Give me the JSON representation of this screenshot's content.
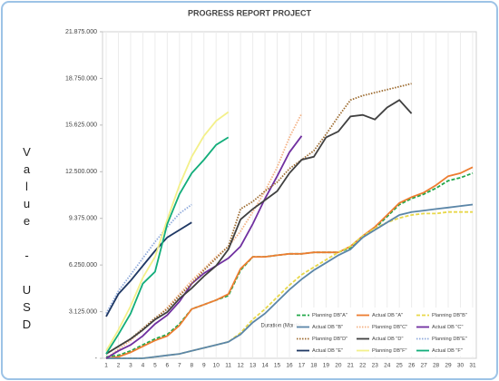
{
  "chart_data": {
    "type": "line",
    "title": "PROGRESS REPORT PROJECT",
    "ylabel": "Value - USD",
    "xlabel": "Duration (Month)",
    "x": [
      1,
      2,
      3,
      4,
      5,
      6,
      7,
      8,
      9,
      10,
      11,
      12,
      13,
      14,
      15,
      16,
      17,
      18,
      19,
      20,
      21,
      22,
      23,
      24,
      25,
      26,
      27,
      28,
      29,
      30,
      31
    ],
    "xlim": [
      0.7,
      31.3
    ],
    "xticks": [
      1,
      2,
      3,
      4,
      5,
      6,
      7,
      8,
      9,
      10,
      11,
      12,
      13,
      14,
      15,
      16,
      17,
      18,
      19,
      20,
      21,
      22,
      23,
      24,
      25,
      26,
      27,
      28,
      29,
      30,
      31
    ],
    "ylim": [
      0,
      21875000
    ],
    "yticks": [
      {
        "value": 0,
        "label": "-"
      },
      {
        "value": 3125000,
        "label": "3.125.000"
      },
      {
        "value": 6250000,
        "label": "6.250.000"
      },
      {
        "value": 9375000,
        "label": "9.375.000"
      },
      {
        "value": 12500000,
        "label": "12.500.000"
      },
      {
        "value": 15625000,
        "label": "15.625.000"
      },
      {
        "value": 18750000,
        "label": "18.750.000"
      },
      {
        "value": 21875000,
        "label": "21.875.000"
      }
    ],
    "grid": "x",
    "legend": "lower right",
    "series": [
      {
        "name": "Planning DB\"A\"",
        "color": "#22a84a",
        "style": "dashed",
        "values": [
          100000,
          200000,
          500000,
          900000,
          1300000,
          1600000,
          2300000,
          3300000,
          3600000,
          3900000,
          4200000,
          5900000,
          6800000,
          6800000,
          6900000,
          7000000,
          7000000,
          7100000,
          7100000,
          7100000,
          7400000,
          8100000,
          8700000,
          9500000,
          10300000,
          10700000,
          11000000,
          11400000,
          11900000,
          12100000,
          12400000
        ]
      },
      {
        "name": "Actual DB \"A\"",
        "color": "#ed7d31",
        "style": "solid",
        "values": [
          0,
          100000,
          400000,
          800000,
          1200000,
          1500000,
          2200000,
          3300000,
          3600000,
          3900000,
          4300000,
          6000000,
          6800000,
          6800000,
          6900000,
          7000000,
          7000000,
          7100000,
          7100000,
          7100000,
          7500000,
          8200000,
          8800000,
          9600000,
          10400000,
          10800000,
          11100000,
          11600000,
          12200000,
          12400000,
          12800000
        ]
      },
      {
        "name": "Planning  DB\"B\"",
        "color": "#e8d84a",
        "style": "dashed",
        "values": [
          0,
          0,
          0,
          0,
          100000,
          200000,
          300000,
          500000,
          700000,
          900000,
          1100000,
          1700000,
          2600000,
          3300000,
          4100000,
          4900000,
          5600000,
          6100000,
          6600000,
          7100000,
          7500000,
          8200000,
          8700000,
          9100000,
          9400000,
          9600000,
          9700000,
          9700000,
          9800000,
          9800000,
          9800000
        ]
      },
      {
        "name": "Actual  DB \"B\"",
        "color": "#5b86a8",
        "style": "solid",
        "values": [
          0,
          0,
          0,
          0,
          100000,
          200000,
          300000,
          500000,
          700000,
          900000,
          1100000,
          1600000,
          2400000,
          3000000,
          3800000,
          4600000,
          5300000,
          5900000,
          6400000,
          6900000,
          7300000,
          8100000,
          8600000,
          9100000,
          9600000,
          9800000,
          9900000,
          10000000,
          10100000,
          10200000,
          10300000
        ]
      },
      {
        "name": "Planning  DB\"C\"",
        "color": "#f4b183",
        "style": "dotted",
        "values": [
          0,
          600000,
          1200000,
          1900000,
          2600000,
          3400000,
          4300000,
          5200000,
          6000000,
          6800000,
          7500000,
          8500000,
          9800000,
          11200000,
          12800000,
          14800000,
          16400000,
          null,
          null,
          null,
          null,
          null,
          null,
          null,
          null,
          null,
          null,
          null,
          null,
          null,
          null
        ]
      },
      {
        "name": "Actual DB \"C\"",
        "color": "#7030a0",
        "style": "solid",
        "values": [
          0,
          500000,
          900000,
          1500000,
          2300000,
          2900000,
          3800000,
          5000000,
          5700000,
          6200000,
          6700000,
          7500000,
          9000000,
          10700000,
          12200000,
          13800000,
          14900000,
          null,
          null,
          null,
          null,
          null,
          null,
          null,
          null,
          null,
          null,
          null,
          null,
          null,
          null
        ]
      },
      {
        "name": "Planning DB\"D\"",
        "color": "#9c6a2e",
        "style": "dotted",
        "values": [
          300000,
          800000,
          1300000,
          2000000,
          2700000,
          3300000,
          4200000,
          5000000,
          5900000,
          6700000,
          7500000,
          10000000,
          10500000,
          11200000,
          11800000,
          12700000,
          13300000,
          13900000,
          15000000,
          16200000,
          17300000,
          17600000,
          17800000,
          18000000,
          18200000,
          18400000,
          null,
          null,
          null,
          null,
          null
        ]
      },
      {
        "name": "Actual  DB \"D\"",
        "color": "#404040",
        "style": "solid",
        "values": [
          300000,
          800000,
          1300000,
          1900000,
          2600000,
          3100000,
          4000000,
          4700000,
          5500000,
          6200000,
          7300000,
          9300000,
          10000000,
          10600000,
          11200000,
          12400000,
          13300000,
          13500000,
          14800000,
          15200000,
          16200000,
          16300000,
          16000000,
          16800000,
          17300000,
          16400000,
          null,
          null,
          null,
          null,
          null
        ]
      },
      {
        "name": "Planning DB\"E\"",
        "color": "#8faadc",
        "style": "dotted",
        "values": [
          3000000,
          4500000,
          5600000,
          6700000,
          7800000,
          8800000,
          9700000,
          10300000,
          null,
          null,
          null,
          null,
          null,
          null,
          null,
          null,
          null,
          null,
          null,
          null,
          null,
          null,
          null,
          null,
          null,
          null,
          null,
          null,
          null,
          null,
          null
        ]
      },
      {
        "name": "Actual DB \"E\"",
        "color": "#1f3864",
        "style": "solid",
        "values": [
          2800000,
          4300000,
          5200000,
          6200000,
          7200000,
          8100000,
          8600000,
          9100000,
          null,
          null,
          null,
          null,
          null,
          null,
          null,
          null,
          null,
          null,
          null,
          null,
          null,
          null,
          null,
          null,
          null,
          null,
          null,
          null,
          null,
          null,
          null
        ]
      },
      {
        "name": "Planning DB\"F\"",
        "color": "#f3f08a",
        "style": "solid",
        "values": [
          500000,
          1900000,
          3500000,
          5400000,
          6800000,
          9300000,
          11600000,
          13500000,
          14900000,
          15900000,
          16500000,
          null,
          null,
          null,
          null,
          null,
          null,
          null,
          null,
          null,
          null,
          null,
          null,
          null,
          null,
          null,
          null,
          null,
          null,
          null,
          null
        ]
      },
      {
        "name": "Actual DB \"F\"",
        "color": "#12ad7a",
        "style": "solid",
        "values": [
          300000,
          1600000,
          3000000,
          5000000,
          5800000,
          9000000,
          11000000,
          12400000,
          13300000,
          14300000,
          14800000,
          null,
          null,
          null,
          null,
          null,
          null,
          null,
          null,
          null,
          null,
          null,
          null,
          null,
          null,
          null,
          null,
          null,
          null,
          null,
          null
        ]
      }
    ]
  }
}
